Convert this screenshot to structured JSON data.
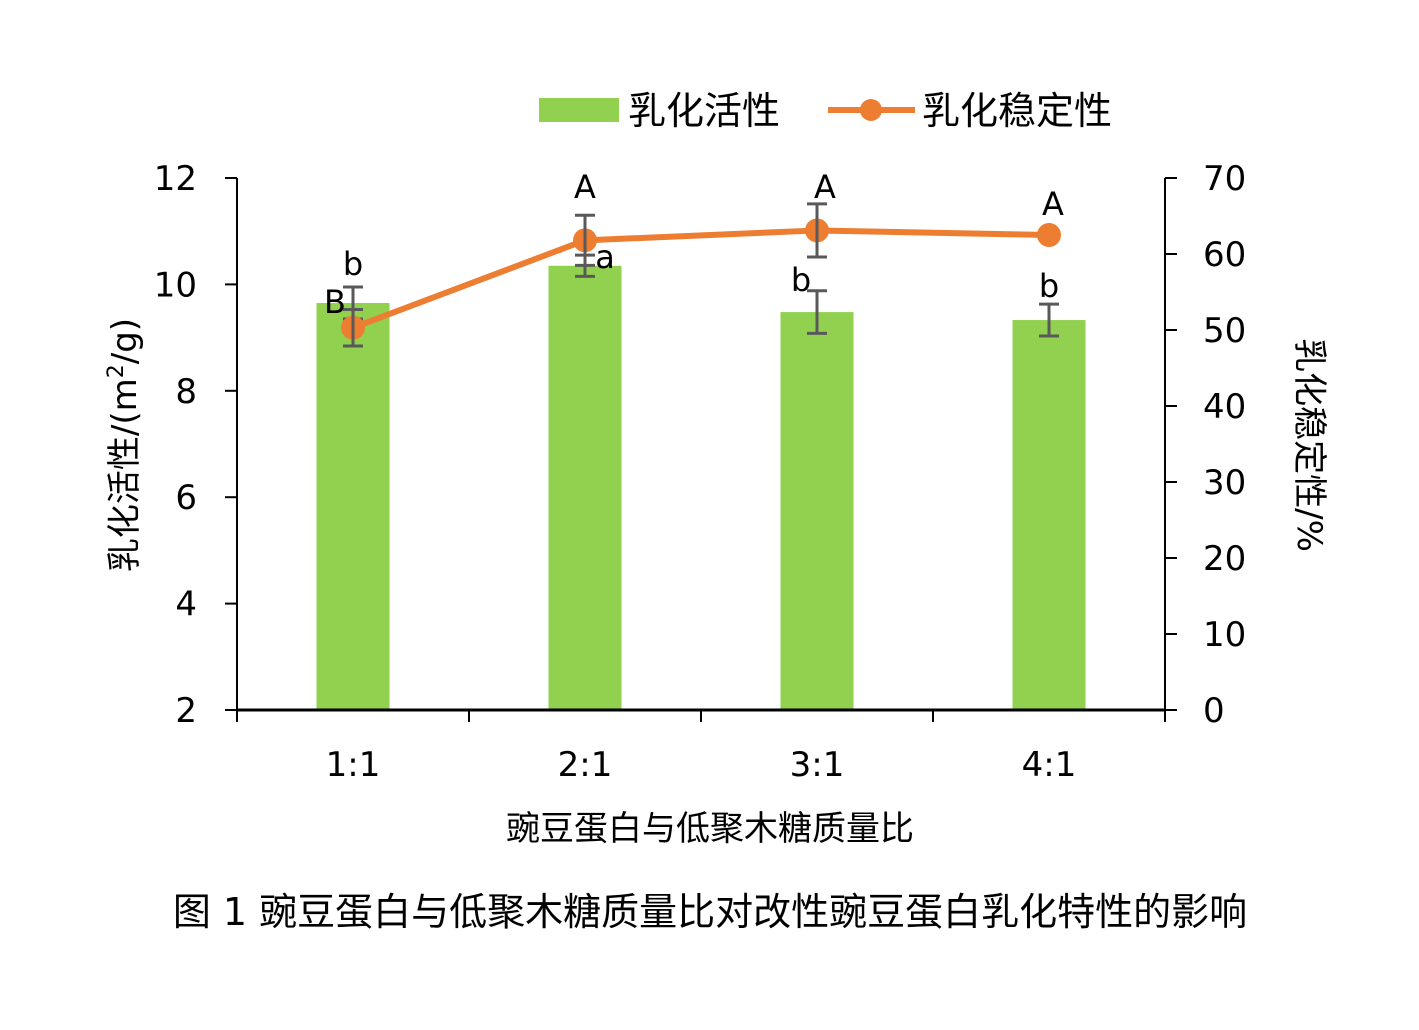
{
  "chart_data": {
    "type": "bar+line",
    "caption": "图 1 豌豆蛋白与低聚木糖质量比对改性豌豆蛋白乳化特性的影响",
    "xlabel": "豌豆蛋白与低聚木糖质量比",
    "categories": [
      "1:1",
      "2:1",
      "3:1",
      "4:1"
    ],
    "y_left": {
      "label_main": "乳化活性/(m",
      "label_sup": "2",
      "label_end": "/g)",
      "range": [
        2,
        12
      ],
      "ticks": [
        2,
        4,
        6,
        8,
        10,
        12
      ]
    },
    "y_right": {
      "label": "乳化稳定性/%",
      "range": [
        0,
        70
      ],
      "ticks": [
        0,
        10,
        20,
        30,
        40,
        50,
        60,
        70
      ]
    },
    "legend": {
      "position": "top"
    },
    "series": [
      {
        "name": "乳化活性",
        "kind": "bar",
        "axis": "left",
        "color": "#92d050",
        "values": [
          9.65,
          10.35,
          9.48,
          9.33
        ],
        "errors": [
          0.3,
          0.2,
          0.4,
          0.3
        ],
        "labels": [
          "b",
          "a",
          "b",
          "b"
        ]
      },
      {
        "name": "乳化稳定性",
        "kind": "line",
        "axis": "right",
        "color": "#ed7d31",
        "values": [
          50.3,
          61.8,
          63.1,
          62.5
        ],
        "errors": [
          2.4,
          3.3,
          3.5,
          0
        ],
        "labels": [
          "B",
          "A",
          "A",
          "A"
        ]
      }
    ]
  }
}
